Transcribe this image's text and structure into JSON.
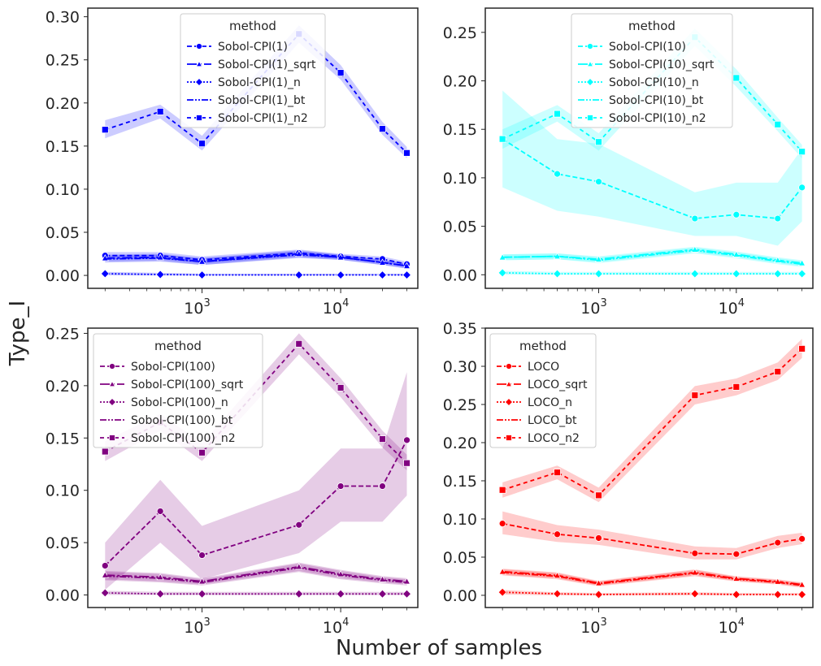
{
  "figure": {
    "ylabel": "Type_I",
    "xlabel": "Number of samples"
  },
  "legend_title": "method",
  "chart_data": [
    {
      "type": "line",
      "xscale": "log",
      "xlim": [
        150,
        36000
      ],
      "ylim": [
        -0.015,
        0.31
      ],
      "yticks": [
        0.0,
        0.05,
        0.1,
        0.15,
        0.2,
        0.25,
        0.3
      ],
      "ytick_labels": [
        "0.00",
        "0.05",
        "0.10",
        "0.15",
        "0.20",
        "0.25",
        "0.30"
      ],
      "xticks": [
        {
          "value": 1000,
          "base": "10",
          "exp": "3"
        },
        {
          "value": 10000,
          "base": "10",
          "exp": "4"
        }
      ],
      "color": "#0000ff",
      "legend_position": "top-center",
      "legend_title": "method",
      "x": [
        200,
        500,
        1000,
        5000,
        10000,
        20000,
        30000
      ],
      "series": [
        {
          "name": "Sobol-CPI(1)",
          "marker": "circle",
          "dash": "6,3",
          "values": [
            0.023,
            0.023,
            0.018,
            0.026,
            0.022,
            0.019,
            0.013
          ],
          "ci_low": [
            0.019,
            0.019,
            0.014,
            0.022,
            0.019,
            0.016,
            0.01
          ],
          "ci_high": [
            0.027,
            0.027,
            0.022,
            0.03,
            0.025,
            0.022,
            0.016
          ]
        },
        {
          "name": "Sobol-CPI(1)_sqrt",
          "marker": "triangle",
          "dash": "12,3,3,3",
          "values": [
            0.02,
            0.021,
            0.016,
            0.025,
            0.021,
            0.015,
            0.011
          ],
          "ci_low": [
            0.016,
            0.017,
            0.012,
            0.021,
            0.018,
            0.012,
            0.008
          ],
          "ci_high": [
            0.024,
            0.025,
            0.02,
            0.029,
            0.024,
            0.018,
            0.014
          ]
        },
        {
          "name": "Sobol-CPI(1)_n",
          "marker": "diamond",
          "dash": "2,2",
          "values": [
            0.002,
            0.001,
            0.0005,
            0.0005,
            0.0005,
            0.0005,
            0.0005
          ],
          "ci_low": [
            0.0,
            0.0,
            0.0,
            0.0,
            0.0,
            0.0,
            0.0
          ],
          "ci_high": [
            0.004,
            0.003,
            0.002,
            0.002,
            0.002,
            0.002,
            0.002
          ]
        },
        {
          "name": "Sobol-CPI(1)_bt",
          "marker": "none",
          "dash": "8,2,2,2,2,2",
          "values": [
            0.019,
            0.02,
            0.016,
            0.024,
            0.021,
            0.015,
            0.011
          ],
          "ci_low": [
            0.015,
            0.016,
            0.012,
            0.02,
            0.018,
            0.012,
            0.008
          ],
          "ci_high": [
            0.023,
            0.024,
            0.02,
            0.028,
            0.024,
            0.018,
            0.014
          ]
        },
        {
          "name": "Sobol-CPI(1)_n2",
          "marker": "square",
          "dash": "5,4",
          "values": [
            0.169,
            0.19,
            0.153,
            0.28,
            0.235,
            0.17,
            0.142
          ],
          "ci_low": [
            0.159,
            0.182,
            0.145,
            0.27,
            0.227,
            0.163,
            0.136
          ],
          "ci_high": [
            0.18,
            0.198,
            0.162,
            0.29,
            0.244,
            0.178,
            0.149
          ]
        }
      ]
    },
    {
      "type": "line",
      "xscale": "log",
      "xlim": [
        150,
        36000
      ],
      "ylim": [
        -0.014,
        0.275
      ],
      "yticks": [
        0.0,
        0.05,
        0.1,
        0.15,
        0.2,
        0.25
      ],
      "ytick_labels": [
        "0.00",
        "0.05",
        "0.10",
        "0.15",
        "0.20",
        "0.25"
      ],
      "xticks": [
        {
          "value": 1000,
          "base": "10",
          "exp": "3"
        },
        {
          "value": 10000,
          "base": "10",
          "exp": "4"
        }
      ],
      "color": "#00ffff",
      "legend_position": "top-center",
      "legend_title": "method",
      "x": [
        200,
        500,
        1000,
        5000,
        10000,
        20000,
        30000
      ],
      "series": [
        {
          "name": "Sobol-CPI(10)",
          "marker": "circle",
          "dash": "6,3",
          "values": [
            0.14,
            0.104,
            0.096,
            0.058,
            0.062,
            0.058,
            0.09
          ],
          "ci_low": [
            0.09,
            0.066,
            0.06,
            0.04,
            0.04,
            0.03,
            0.055
          ],
          "ci_high": [
            0.19,
            0.14,
            0.135,
            0.085,
            0.095,
            0.095,
            0.13
          ]
        },
        {
          "name": "Sobol-CPI(10)_sqrt",
          "marker": "triangle",
          "dash": "12,3,3,3",
          "values": [
            0.018,
            0.019,
            0.016,
            0.026,
            0.021,
            0.015,
            0.012
          ],
          "ci_low": [
            0.015,
            0.016,
            0.013,
            0.023,
            0.018,
            0.012,
            0.009
          ],
          "ci_high": [
            0.021,
            0.022,
            0.019,
            0.029,
            0.024,
            0.018,
            0.015
          ]
        },
        {
          "name": "Sobol-CPI(10)_n",
          "marker": "diamond",
          "dash": "2,2",
          "values": [
            0.002,
            0.001,
            0.001,
            0.001,
            0.001,
            0.001,
            0.001
          ],
          "ci_low": [
            0.0,
            0.0,
            0.0,
            0.0,
            0.0,
            0.0,
            0.0
          ],
          "ci_high": [
            0.004,
            0.003,
            0.003,
            0.003,
            0.003,
            0.003,
            0.003
          ]
        },
        {
          "name": "Sobol-CPI(10)_bt",
          "marker": "none",
          "dash": "8,2,2,2,2,2",
          "values": [
            0.018,
            0.019,
            0.015,
            0.025,
            0.02,
            0.014,
            0.011
          ],
          "ci_low": [
            0.015,
            0.016,
            0.012,
            0.022,
            0.017,
            0.011,
            0.008
          ],
          "ci_high": [
            0.021,
            0.022,
            0.018,
            0.028,
            0.023,
            0.017,
            0.014
          ]
        },
        {
          "name": "Sobol-CPI(10)_n2",
          "marker": "square",
          "dash": "5,4",
          "values": [
            0.14,
            0.166,
            0.137,
            0.245,
            0.203,
            0.155,
            0.127
          ],
          "ci_low": [
            0.13,
            0.158,
            0.128,
            0.236,
            0.194,
            0.148,
            0.12
          ],
          "ci_high": [
            0.15,
            0.175,
            0.146,
            0.254,
            0.212,
            0.162,
            0.134
          ]
        }
      ]
    },
    {
      "type": "line",
      "xscale": "log",
      "xlim": [
        150,
        36000
      ],
      "ylim": [
        -0.012,
        0.255
      ],
      "yticks": [
        0.0,
        0.05,
        0.1,
        0.15,
        0.2,
        0.25
      ],
      "ytick_labels": [
        "0.00",
        "0.05",
        "0.10",
        "0.15",
        "0.20",
        "0.25"
      ],
      "xticks": [
        {
          "value": 1000,
          "base": "10",
          "exp": "3"
        },
        {
          "value": 10000,
          "base": "10",
          "exp": "4"
        }
      ],
      "color": "#800080",
      "legend_position": "top-left",
      "legend_title": "method",
      "x": [
        200,
        500,
        1000,
        5000,
        10000,
        20000,
        30000
      ],
      "series": [
        {
          "name": "Sobol-CPI(100)",
          "marker": "circle",
          "dash": "6,3",
          "values": [
            0.028,
            0.08,
            0.038,
            0.067,
            0.104,
            0.104,
            0.148
          ],
          "ci_low": [
            0.005,
            0.05,
            0.015,
            0.04,
            0.07,
            0.07,
            0.095
          ],
          "ci_high": [
            0.05,
            0.11,
            0.066,
            0.1,
            0.14,
            0.14,
            0.213
          ]
        },
        {
          "name": "Sobol-CPI(100)_sqrt",
          "marker": "triangle",
          "dash": "12,3,3,3",
          "values": [
            0.019,
            0.017,
            0.013,
            0.027,
            0.02,
            0.015,
            0.013
          ],
          "ci_low": [
            0.015,
            0.013,
            0.01,
            0.023,
            0.016,
            0.012,
            0.01
          ],
          "ci_high": [
            0.023,
            0.021,
            0.016,
            0.031,
            0.024,
            0.018,
            0.016
          ]
        },
        {
          "name": "Sobol-CPI(100)_n",
          "marker": "diamond",
          "dash": "2,2",
          "values": [
            0.002,
            0.001,
            0.001,
            0.001,
            0.001,
            0.001,
            0.001
          ],
          "ci_low": [
            0.0,
            0.0,
            0.0,
            0.0,
            0.0,
            0.0,
            0.0
          ],
          "ci_high": [
            0.004,
            0.003,
            0.003,
            0.003,
            0.003,
            0.003,
            0.003
          ]
        },
        {
          "name": "Sobol-CPI(100)_bt",
          "marker": "none",
          "dash": "8,2,2,2,2,2",
          "values": [
            0.018,
            0.016,
            0.012,
            0.026,
            0.019,
            0.014,
            0.012
          ],
          "ci_low": [
            0.014,
            0.012,
            0.009,
            0.022,
            0.015,
            0.011,
            0.009
          ],
          "ci_high": [
            0.022,
            0.02,
            0.015,
            0.03,
            0.023,
            0.017,
            0.015
          ]
        },
        {
          "name": "Sobol-CPI(100)_n2",
          "marker": "square",
          "dash": "5,4",
          "values": [
            0.137,
            0.165,
            0.136,
            0.24,
            0.198,
            0.149,
            0.126
          ],
          "ci_low": [
            0.128,
            0.157,
            0.128,
            0.23,
            0.189,
            0.141,
            0.119
          ],
          "ci_high": [
            0.147,
            0.173,
            0.145,
            0.25,
            0.207,
            0.157,
            0.134
          ]
        }
      ]
    },
    {
      "type": "line",
      "xscale": "log",
      "xlim": [
        150,
        36000
      ],
      "ylim": [
        -0.016,
        0.35
      ],
      "yticks": [
        0.0,
        0.05,
        0.1,
        0.15,
        0.2,
        0.25,
        0.3,
        0.35
      ],
      "ytick_labels": [
        "0.00",
        "0.05",
        "0.10",
        "0.15",
        "0.20",
        "0.25",
        "0.30",
        "0.35"
      ],
      "xticks": [
        {
          "value": 1000,
          "base": "10",
          "exp": "3"
        },
        {
          "value": 10000,
          "base": "10",
          "exp": "4"
        }
      ],
      "color": "#ff0000",
      "legend_position": "top-left",
      "legend_title": "method",
      "x": [
        200,
        500,
        1000,
        5000,
        10000,
        20000,
        30000
      ],
      "series": [
        {
          "name": "LOCO",
          "marker": "circle",
          "dash": "6,3",
          "values": [
            0.094,
            0.08,
            0.075,
            0.055,
            0.054,
            0.069,
            0.074
          ],
          "ci_low": [
            0.08,
            0.07,
            0.066,
            0.047,
            0.047,
            0.062,
            0.067
          ],
          "ci_high": [
            0.11,
            0.092,
            0.086,
            0.064,
            0.062,
            0.078,
            0.082
          ]
        },
        {
          "name": "LOCO_sqrt",
          "marker": "triangle",
          "dash": "12,3,3,3",
          "values": [
            0.031,
            0.026,
            0.016,
            0.03,
            0.022,
            0.018,
            0.014
          ],
          "ci_low": [
            0.027,
            0.022,
            0.013,
            0.026,
            0.019,
            0.015,
            0.011
          ],
          "ci_high": [
            0.035,
            0.03,
            0.019,
            0.034,
            0.025,
            0.021,
            0.017
          ]
        },
        {
          "name": "LOCO_n",
          "marker": "diamond",
          "dash": "2,2",
          "values": [
            0.004,
            0.002,
            0.001,
            0.002,
            0.001,
            0.001,
            0.001
          ],
          "ci_low": [
            0.001,
            0.0,
            0.0,
            0.0,
            0.0,
            0.0,
            0.0
          ],
          "ci_high": [
            0.007,
            0.004,
            0.003,
            0.004,
            0.003,
            0.003,
            0.003
          ]
        },
        {
          "name": "LOCO_bt",
          "marker": "none",
          "dash": "8,2,2,2,2,2",
          "values": [
            0.03,
            0.025,
            0.015,
            0.029,
            0.021,
            0.017,
            0.013
          ],
          "ci_low": [
            0.026,
            0.021,
            0.012,
            0.025,
            0.018,
            0.014,
            0.01
          ],
          "ci_high": [
            0.034,
            0.029,
            0.018,
            0.033,
            0.024,
            0.02,
            0.016
          ]
        },
        {
          "name": "LOCO_n2",
          "marker": "square",
          "dash": "5,4",
          "values": [
            0.138,
            0.161,
            0.131,
            0.262,
            0.273,
            0.293,
            0.323
          ],
          "ci_low": [
            0.128,
            0.152,
            0.122,
            0.25,
            0.262,
            0.282,
            0.311
          ],
          "ci_high": [
            0.148,
            0.17,
            0.141,
            0.274,
            0.284,
            0.305,
            0.336
          ]
        }
      ]
    }
  ]
}
